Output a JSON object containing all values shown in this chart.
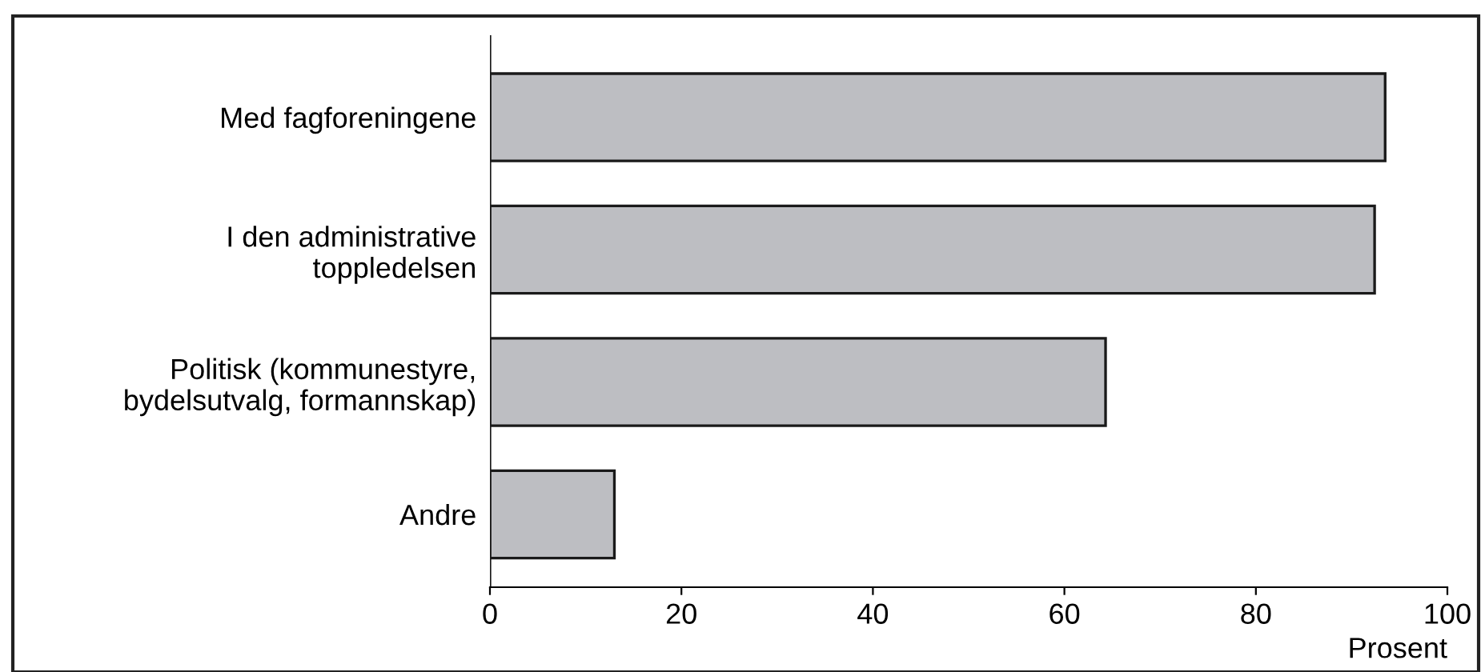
{
  "chart_data": {
    "type": "bar",
    "orientation": "horizontal",
    "categories": [
      "Med fagforeningene",
      "I den administrative\ntoppledelsen",
      "Politisk (kommunestyre,\nbydelsutvalg, formannskap)",
      "Andre"
    ],
    "values": [
      93.5,
      92.4,
      64.3,
      13.0
    ],
    "color": "#bdbec2",
    "xlabel": "Prosent",
    "xlim": [
      0,
      100
    ],
    "xticks": [
      0,
      20,
      40,
      60,
      80,
      100
    ],
    "grid": false
  }
}
